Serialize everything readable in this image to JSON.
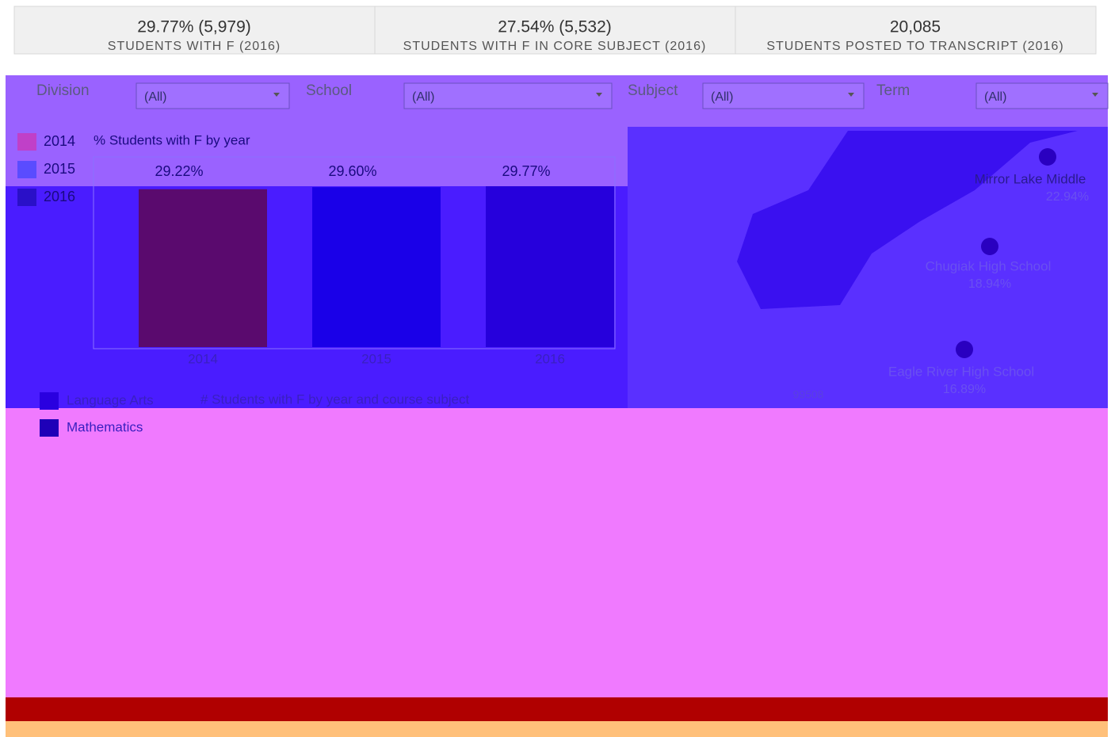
{
  "kpis": [
    {
      "value": "29.77% (5,979)",
      "label": "STUDENTS WITH F (2016)"
    },
    {
      "value": "27.54% (5,532)",
      "label": "STUDENTS WITH F IN CORE SUBJECT (2016)"
    },
    {
      "value": "20,085",
      "label": "STUDENTS POSTED TO TRANSCRIPT (2016)"
    }
  ],
  "filters": [
    {
      "label": "Division",
      "value": "(All)"
    },
    {
      "label": "School",
      "value": "(All)"
    },
    {
      "label": "Subject",
      "value": "(All)"
    },
    {
      "label": "Term",
      "value": "(All)"
    }
  ],
  "year_legend": [
    {
      "name": "2014",
      "color": "#c040c8"
    },
    {
      "name": "2015",
      "color": "#5a4cff"
    },
    {
      "name": "2016",
      "color": "#2a10c8"
    }
  ],
  "bar_chart": {
    "type": "bar",
    "title": "% Students with F by year",
    "categories": [
      "2014",
      "2015",
      "2016"
    ],
    "values": [
      29.22,
      29.6,
      29.77
    ],
    "value_labels": [
      "29.22%",
      "29.60%",
      "29.77%"
    ],
    "colors": [
      "#5a0a6e",
      "#1a00e8",
      "#2600dc"
    ]
  },
  "map": {
    "markers": [
      {
        "name": "Mirror Lake Middle",
        "value": "22.94%"
      },
      {
        "name": "Chugiak High School",
        "value": "18.94%"
      },
      {
        "name": "Eagle River High School",
        "value": "16.89%"
      }
    ],
    "zip": "99508"
  },
  "subject_legend": [
    {
      "name": "Language Arts",
      "color": "#2a00e0"
    },
    {
      "name": "Mathematics",
      "color": "#1e00b8"
    }
  ],
  "subject_chart": {
    "title": "# Students with F by year and course subject"
  }
}
